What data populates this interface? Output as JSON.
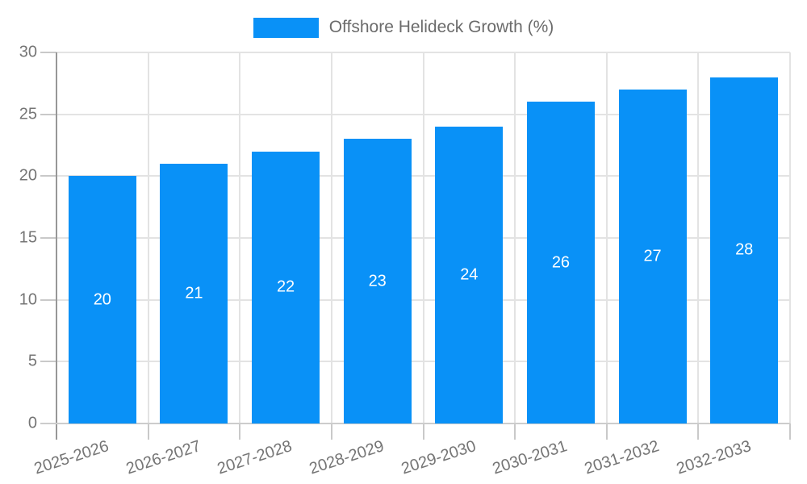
{
  "legend": {
    "label": "Offshore Helideck Growth (%)"
  },
  "colors": {
    "bar": "#0991f7",
    "grid": "#e3e3e3",
    "tick": "#c9c9c9",
    "y_axis_line": "#979797",
    "x_axis_line": "#cccccc",
    "tick_text": "#757575",
    "legend_text": "#6b6b6b",
    "value_label_text": "#ffffff",
    "background": "#ffffff"
  },
  "chart_data": {
    "type": "bar",
    "title": "",
    "xlabel": "",
    "ylabel": "",
    "categories": [
      "2025-2026",
      "2026-2027",
      "2027-2028",
      "2028-2029",
      "2029-2030",
      "2030-2031",
      "2031-2032",
      "2032-2033"
    ],
    "series": [
      {
        "name": "Offshore Helideck Growth (%)",
        "values": [
          20,
          21,
          22,
          23,
          24,
          26,
          27,
          28
        ]
      }
    ],
    "value_labels": [
      "20",
      "21",
      "22",
      "23",
      "24",
      "26",
      "27",
      "28"
    ],
    "ylim": [
      0,
      30
    ],
    "yticks": [
      "0",
      "5",
      "10",
      "15",
      "20",
      "25",
      "30"
    ],
    "grid": "on",
    "legend_position": "top-center",
    "x_label_rotation_deg": -18
  }
}
